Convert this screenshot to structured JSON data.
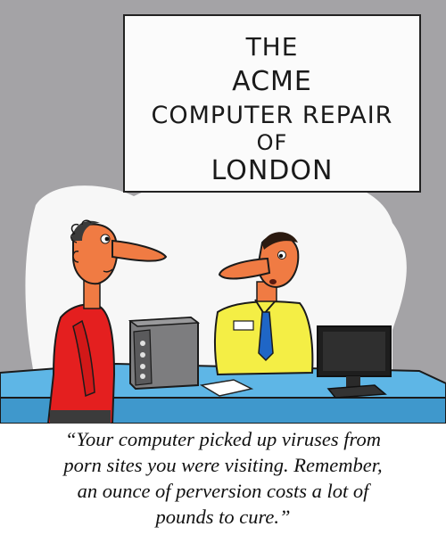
{
  "sign": {
    "line1": "THE",
    "line2": "ACME",
    "line3": "COMPUTER REPAIR",
    "line4": "OF",
    "line5": "LONDON"
  },
  "caption": {
    "line1": "“Your computer picked up viruses from",
    "line2": "porn sites you were visiting. Remember,",
    "line3": "an ounce of perversion costs a lot of",
    "line4": "pounds to cure.”"
  },
  "colors": {
    "background": "#a4a3a6",
    "counter": "#5eb6e6",
    "customer_shirt": "#e41f1f",
    "technician_shirt": "#f4ee45",
    "tie": "#1f66c6",
    "skin": "#f07b43"
  },
  "icons": [
    "computer-tower-icon",
    "monitor-icon"
  ]
}
